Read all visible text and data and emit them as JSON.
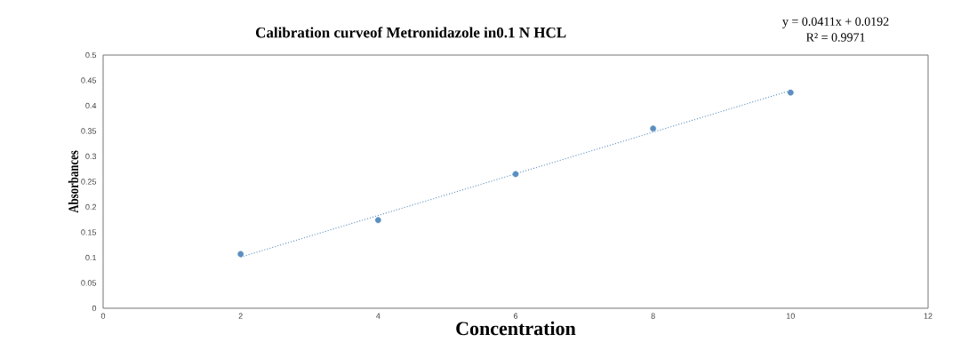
{
  "chart_data": {
    "type": "scatter",
    "title": "Calibration curveof Metronidazole in0.1 N HCL",
    "xlabel": "Concentration",
    "ylabel": "Absorbances",
    "annotations": [
      "y = 0.0411x + 0.0192",
      "R² = 0.9971"
    ],
    "x": [
      2,
      4,
      6,
      8,
      10
    ],
    "series": [
      {
        "color": "#5b8fbf",
        "values": [
          0.107,
          0.174,
          0.265,
          0.355,
          0.426
        ],
        "marker": "circle"
      },
      {
        "type": "line",
        "color": "#5b8fbf",
        "x": [
          2,
          10
        ],
        "values": [
          0.101,
          0.43
        ],
        "line_style": "dotted",
        "marker": "none"
      }
    ],
    "xlim": [
      0,
      12
    ],
    "ylim": [
      0,
      0.5
    ],
    "xticks": [
      0,
      2,
      4,
      6,
      8,
      10,
      12
    ],
    "yticks": [
      0,
      0.05,
      0.1,
      0.15,
      0.2,
      0.25,
      0.3,
      0.35,
      0.4,
      0.45,
      0.5
    ],
    "grid": false
  }
}
